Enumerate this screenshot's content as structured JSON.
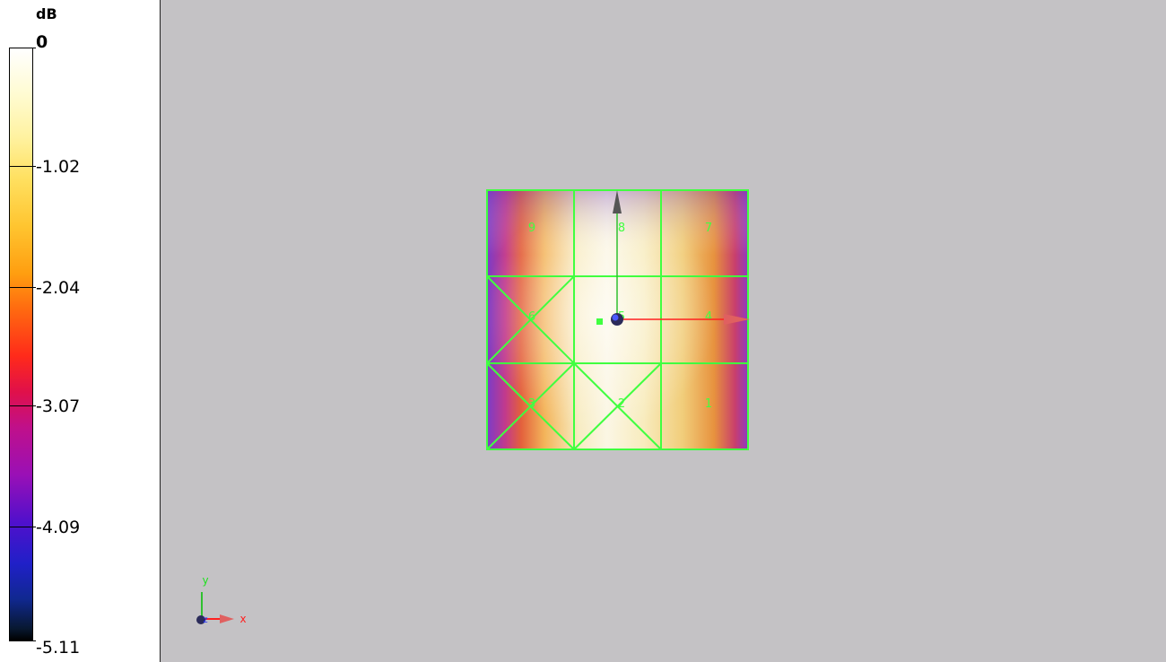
{
  "legend": {
    "unit": "dB",
    "ticks": [
      "0",
      "-1.02",
      "-2.04",
      "-3.07",
      "-4.09",
      "-5.11"
    ]
  },
  "grid": {
    "cell_labels": [
      "9",
      "8",
      "7",
      "6",
      "5",
      "4",
      "3",
      "2",
      "1"
    ]
  },
  "axes": {
    "x_label": "x",
    "y_label": "y",
    "z_label": "z"
  },
  "colors": {
    "background": "#c4c2c5",
    "grid_lines": "#40ff40",
    "x_axis": "#ff3030",
    "y_axis": "#30ff30",
    "z_axis": "#2030ff"
  }
}
